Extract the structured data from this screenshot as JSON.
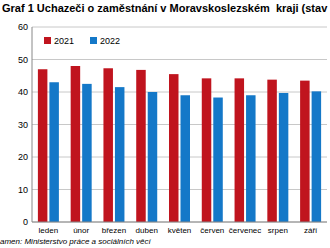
{
  "chart_data": {
    "type": "bar",
    "title": "Graf 1 Uchazeči o zaměstnání v Moravskoslezském  kraji (stav",
    "source": "amen: Ministerstvo práce a sociálních věcí",
    "categories": [
      "leden",
      "únor",
      "březen",
      "duben",
      "květen",
      "červen",
      "červenec",
      "srpen",
      "září"
    ],
    "series": [
      {
        "name": "2021",
        "color": "#c0141e",
        "values": [
          47,
          48,
          47.3,
          46.8,
          45.5,
          44.2,
          44.2,
          43.8,
          43.5
        ]
      },
      {
        "name": "2022",
        "color": "#1478c8",
        "values": [
          43,
          42.5,
          41.5,
          40,
          39,
          38.3,
          39,
          39.7,
          40.2
        ]
      }
    ],
    "ylim": [
      0,
      60
    ],
    "yticks": [
      0,
      10,
      20,
      30,
      40,
      50,
      60
    ],
    "grid": true,
    "legend": "top"
  }
}
